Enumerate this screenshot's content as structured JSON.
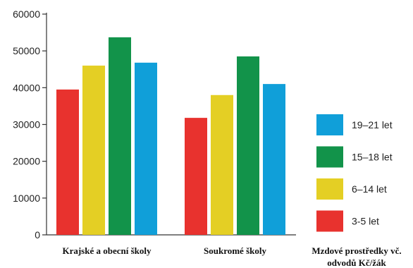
{
  "chart_data": {
    "type": "bar",
    "categories": [
      "Krajské a obecní školy",
      "Soukromé školy"
    ],
    "series": [
      {
        "name": "3-5 let",
        "values": [
          39500,
          31800
        ],
        "color": "#e8322e"
      },
      {
        "name": "6–14 let",
        "values": [
          46000,
          38000
        ],
        "color": "#e4cf24"
      },
      {
        "name": "15–18 let",
        "values": [
          53700,
          48500
        ],
        "color": "#12934a"
      },
      {
        "name": "19–21 let",
        "values": [
          46800,
          41000
        ],
        "color": "#109fd9"
      }
    ],
    "ylim": [
      0,
      60000
    ],
    "yticks": [
      0,
      10000,
      20000,
      30000,
      40000,
      50000,
      60000
    ],
    "xlabel_lines": [
      "Mzdové prostředky vč.",
      "odvodů Kč/žák"
    ],
    "legend_position": "right",
    "grid": false
  }
}
